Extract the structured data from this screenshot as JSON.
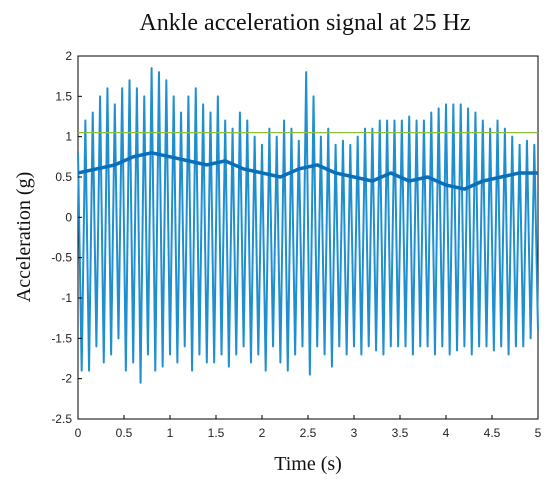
{
  "chart_data": {
    "type": "line",
    "title": "Ankle acceleration signal at 25 Hz",
    "xlabel": "Time (s)",
    "ylabel": "Acceleration  (g)",
    "xlim": [
      0,
      5
    ],
    "ylim": [
      -2.5,
      2
    ],
    "xticks": [
      "0",
      "0.5",
      "1",
      "1.5",
      "2",
      "2.5",
      "3",
      "3.5",
      "4",
      "4.5",
      "5"
    ],
    "yticks": [
      "2",
      "1.5",
      "1",
      "0.5",
      "0",
      "-0.5",
      "-1",
      "-1.5",
      "-2",
      "-2.5"
    ],
    "grid": false,
    "colors": {
      "signal": "#1f8fd0",
      "envelope": "#0a6fb8",
      "threshold": "#8bbf3c"
    },
    "series": [
      {
        "role": "signal",
        "sample_rate_hz": 25,
        "x": [
          0.0,
          0.04,
          0.08,
          0.12,
          0.16,
          0.2,
          0.24,
          0.28,
          0.32,
          0.36,
          0.4,
          0.44,
          0.48,
          0.52,
          0.56,
          0.6,
          0.64,
          0.68,
          0.72,
          0.76,
          0.8,
          0.84,
          0.88,
          0.92,
          0.96,
          1.0,
          1.04,
          1.08,
          1.12,
          1.16,
          1.2,
          1.24,
          1.28,
          1.32,
          1.36,
          1.4,
          1.44,
          1.48,
          1.52,
          1.56,
          1.6,
          1.64,
          1.68,
          1.72,
          1.76,
          1.8,
          1.84,
          1.88,
          1.92,
          1.96,
          2.0,
          2.04,
          2.08,
          2.12,
          2.16,
          2.2,
          2.24,
          2.28,
          2.32,
          2.36,
          2.4,
          2.44,
          2.48,
          2.52,
          2.56,
          2.6,
          2.64,
          2.68,
          2.72,
          2.76,
          2.8,
          2.84,
          2.88,
          2.92,
          2.96,
          3.0,
          3.04,
          3.08,
          3.12,
          3.16,
          3.2,
          3.24,
          3.28,
          3.32,
          3.36,
          3.4,
          3.44,
          3.48,
          3.52,
          3.56,
          3.6,
          3.64,
          3.68,
          3.72,
          3.76,
          3.8,
          3.84,
          3.88,
          3.92,
          3.96,
          4.0,
          4.04,
          4.08,
          4.12,
          4.16,
          4.2,
          4.24,
          4.28,
          4.32,
          4.36,
          4.4,
          4.44,
          4.48,
          4.52,
          4.56,
          4.6,
          4.64,
          4.68,
          4.72,
          4.76,
          4.8,
          4.84,
          4.88,
          4.92,
          4.96,
          5.0
        ],
        "y": [
          0.8,
          -1.9,
          1.2,
          -1.9,
          1.3,
          -1.6,
          1.5,
          -1.8,
          1.6,
          -1.7,
          1.4,
          -1.5,
          1.6,
          -1.9,
          1.7,
          -1.8,
          1.6,
          -2.05,
          1.5,
          -1.7,
          1.85,
          -1.9,
          1.8,
          -1.85,
          1.7,
          -1.7,
          1.5,
          -1.8,
          1.3,
          -1.6,
          1.5,
          -1.9,
          1.6,
          -1.7,
          1.4,
          -1.8,
          1.3,
          -1.8,
          1.5,
          -1.7,
          1.2,
          -1.85,
          1.1,
          -1.7,
          1.3,
          -1.6,
          1.2,
          -1.8,
          1.0,
          -1.7,
          0.9,
          -1.9,
          1.1,
          -1.6,
          1.0,
          -1.8,
          1.2,
          -1.9,
          1.1,
          -1.7,
          0.95,
          -1.6,
          1.8,
          -1.95,
          1.5,
          -1.6,
          1.0,
          -1.7,
          1.1,
          -1.85,
          0.9,
          -1.6,
          0.95,
          -1.7,
          0.9,
          -1.6,
          1.0,
          -1.7,
          1.1,
          -1.6,
          1.1,
          -1.65,
          1.2,
          -1.7,
          1.2,
          -1.6,
          1.2,
          -1.6,
          1.2,
          -1.6,
          1.25,
          -1.7,
          1.2,
          -1.6,
          1.2,
          -1.6,
          1.3,
          -1.7,
          1.35,
          -1.6,
          1.4,
          -1.7,
          1.4,
          -1.65,
          1.4,
          -1.6,
          1.35,
          -1.7,
          1.3,
          -1.6,
          1.2,
          -1.6,
          1.1,
          -1.65,
          1.2,
          -1.6,
          1.1,
          -1.7,
          1.0,
          -1.6,
          0.9,
          -1.6,
          0.95,
          -1.5,
          0.9,
          -1.4
        ]
      },
      {
        "role": "envelope",
        "x": [
          0.0,
          0.2,
          0.4,
          0.6,
          0.8,
          1.0,
          1.2,
          1.4,
          1.6,
          1.8,
          2.0,
          2.2,
          2.4,
          2.6,
          2.8,
          3.0,
          3.2,
          3.4,
          3.6,
          3.8,
          4.0,
          4.2,
          4.4,
          4.6,
          4.8,
          5.0
        ],
        "y": [
          0.55,
          0.6,
          0.65,
          0.75,
          0.8,
          0.75,
          0.7,
          0.65,
          0.7,
          0.6,
          0.55,
          0.5,
          0.6,
          0.65,
          0.55,
          0.5,
          0.45,
          0.55,
          0.45,
          0.5,
          0.4,
          0.35,
          0.45,
          0.5,
          0.55,
          0.55
        ]
      },
      {
        "role": "threshold",
        "x": [
          0,
          5
        ],
        "y": [
          1.05,
          1.05
        ]
      }
    ]
  }
}
